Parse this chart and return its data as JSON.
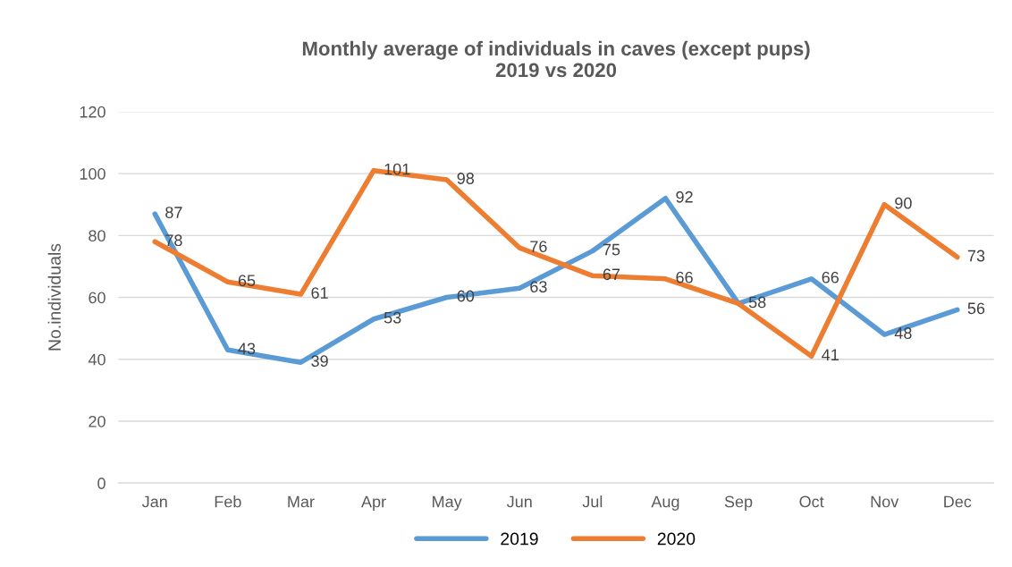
{
  "chart_data": {
    "type": "line",
    "title": "Monthly average of individuals in caves (except pups)\n2019 vs 2020",
    "ylabel": "No.individuals",
    "categories": [
      "Jan",
      "Feb",
      "Mar",
      "Apr",
      "May",
      "Jun",
      "Jul",
      "Aug",
      "Sep",
      "Oct",
      "Nov",
      "Dec"
    ],
    "series": [
      {
        "name": "2019",
        "color": "#5b9bd5",
        "values": [
          87,
          43,
          39,
          53,
          60,
          63,
          75,
          92,
          58,
          66,
          48,
          56
        ],
        "value_labels": [
          "87",
          "43",
          "39",
          "53",
          "60",
          "63",
          "75",
          "92",
          "58",
          "66",
          "48",
          "56"
        ]
      },
      {
        "name": "2020",
        "color": "#ed7d31",
        "values": [
          78,
          65,
          61,
          101,
          98,
          76,
          67,
          66,
          58,
          41,
          90,
          73
        ],
        "value_labels": [
          "78",
          "65",
          "61",
          "101",
          "98",
          "76",
          "67",
          "66",
          null,
          "41",
          "90",
          "73"
        ]
      }
    ],
    "ylim": [
      0,
      120
    ],
    "yticks": [
      0,
      20,
      40,
      60,
      80,
      100,
      120
    ],
    "grid": "y",
    "legend": "bottom",
    "marker": "none",
    "line_style": "solid"
  }
}
